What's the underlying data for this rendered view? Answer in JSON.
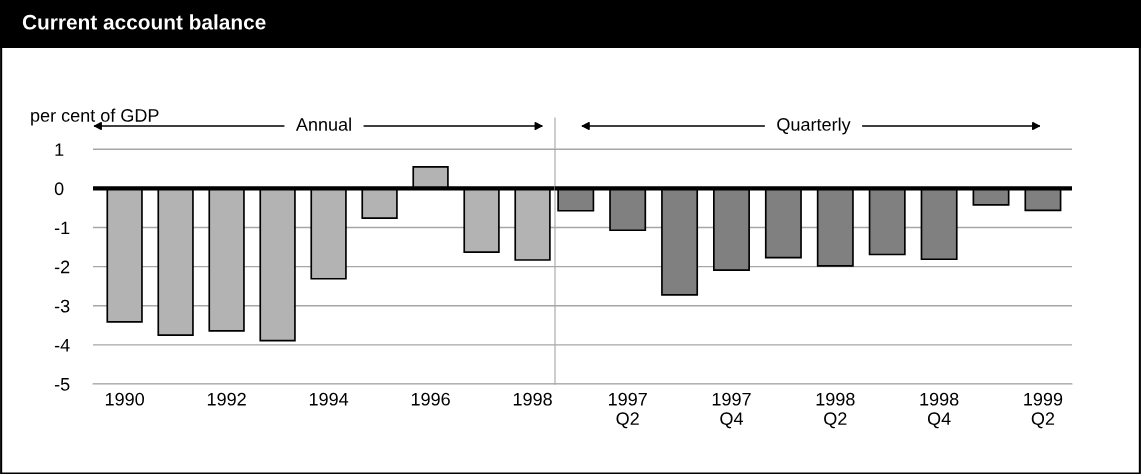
{
  "chart_data": [
    {
      "type": "bar",
      "title": "Current account balance",
      "ylabel": "per cent of GDP",
      "annotations": [
        "Annual"
      ],
      "categories": [
        "1990",
        null,
        "1992",
        null,
        "1994",
        null,
        "1996",
        null,
        "1998"
      ],
      "values": [
        -3.41,
        -3.75,
        -3.64,
        -3.89,
        -2.31,
        -0.76,
        0.55,
        -1.63,
        -1.83
      ],
      "color": "#b3b3b3",
      "ylim": [
        -5,
        1
      ],
      "yticks": [
        -5,
        -4,
        -3,
        -2,
        -1,
        0,
        1
      ],
      "grid": "y",
      "ref_lines": [
        {
          "axis": "y",
          "value": 0,
          "color": "#000000"
        }
      ]
    },
    {
      "type": "bar",
      "annotations": [
        "Quarterly"
      ],
      "categories": [
        null,
        "1997\nQ2",
        null,
        "1997\nQ4",
        null,
        "1998\nQ2",
        null,
        "1998\nQ4",
        null,
        "1999\nQ2"
      ],
      "values": [
        -0.57,
        -1.07,
        -2.72,
        -2.09,
        -1.77,
        -1.98,
        -1.69,
        -1.81,
        -0.42,
        -0.56
      ],
      "color": "#808080",
      "ylim": [
        -5,
        1
      ],
      "yticks": [
        -5,
        -4,
        -3,
        -2,
        -1,
        0,
        1
      ],
      "grid": "y",
      "tick_labels": "x",
      "ref_lines": [
        {
          "axis": "y",
          "value": 0,
          "color": "#000000"
        }
      ]
    }
  ]
}
